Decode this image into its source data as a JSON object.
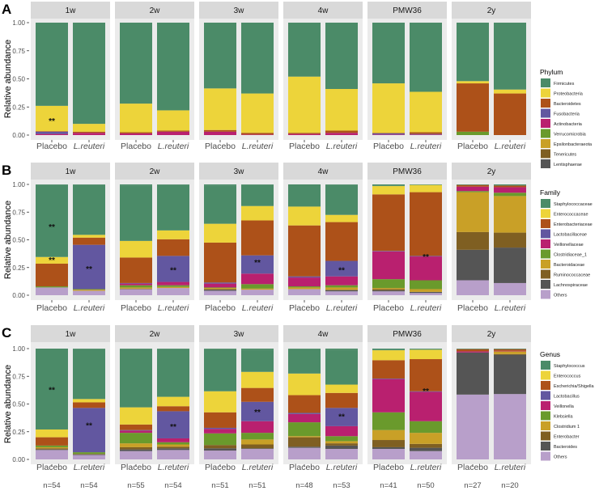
{
  "chart_data": [
    {
      "type": "bar",
      "stacked": true,
      "panel_label": "A",
      "ylabel": "Relative abundance",
      "ylim": [
        0,
        1
      ],
      "yticks": [
        "0.00",
        "0.25",
        "0.50",
        "0.75",
        "1.00"
      ],
      "facets": [
        "1w",
        "2w",
        "3w",
        "4w",
        "PMW36",
        "2y"
      ],
      "groups": [
        "Placebo",
        "L.reuteri"
      ],
      "legend_title": "Phylum",
      "legend_position": "right",
      "taxa": [
        "Firmicutes",
        "Proteobacteria",
        "Bacteroidetes",
        "Fusobacteria",
        "Actinobacteria",
        "Verrucomicrobia",
        "Epsilonbacteraeota",
        "Tenericutes",
        "Lentisphaerae"
      ],
      "colors": [
        "#4b8b68",
        "#edd43a",
        "#ad5119",
        "#6257a0",
        "#b9206f",
        "#6a9a2c",
        "#c9a027",
        "#7f5f22",
        "#555555"
      ],
      "values": [
        [
          [
            0.74,
            0.225,
            0.005,
            0.02,
            0.01,
            0,
            0,
            0,
            0
          ],
          [
            0.9,
            0.07,
            0.01,
            0,
            0.02,
            0,
            0,
            0,
            0
          ]
        ],
        [
          [
            0.72,
            0.255,
            0.01,
            0,
            0.015,
            0,
            0,
            0,
            0
          ],
          [
            0.78,
            0.18,
            0.01,
            0,
            0.03,
            0,
            0,
            0,
            0
          ]
        ],
        [
          [
            0.585,
            0.37,
            0.015,
            0,
            0.03,
            0,
            0,
            0,
            0
          ],
          [
            0.63,
            0.35,
            0.015,
            0,
            0.005,
            0,
            0,
            0,
            0
          ]
        ],
        [
          [
            0.48,
            0.5,
            0.01,
            0,
            0.01,
            0,
            0,
            0,
            0
          ],
          [
            0.59,
            0.37,
            0.02,
            0,
            0.02,
            0,
            0,
            0,
            0
          ]
        ],
        [
          [
            0.54,
            0.44,
            0.005,
            0.01,
            0.005,
            0,
            0,
            0,
            0
          ],
          [
            0.615,
            0.36,
            0.015,
            0.005,
            0.005,
            0,
            0,
            0,
            0
          ]
        ],
        [
          [
            0.52,
            0.02,
            0.43,
            0,
            0,
            0.03,
            0,
            0,
            0
          ],
          [
            0.595,
            0.035,
            0.37,
            0,
            0,
            0,
            0,
            0,
            0
          ]
        ]
      ],
      "annotations": [
        {
          "facet": 0,
          "group": 0,
          "y": 0.13,
          "text": "**"
        }
      ]
    },
    {
      "type": "bar",
      "stacked": true,
      "panel_label": "B",
      "ylabel": "Relative abundance",
      "ylim": [
        0,
        1
      ],
      "yticks": [
        "0.00",
        "0.25",
        "0.50",
        "0.75",
        "1.00"
      ],
      "facets": [
        "1w",
        "2w",
        "3w",
        "4w",
        "PMW36",
        "2y"
      ],
      "groups": [
        "Placebo",
        "L.reuteri"
      ],
      "legend_title": "Family",
      "legend_position": "right",
      "taxa": [
        "Staphylococcaceae",
        "Enterococcaceae",
        "Enterobacteriaceae",
        "Lactobacillaceae",
        "Veillonellaceae",
        "Clostridiaceae_1",
        "Bacteroidaceae",
        "Ruminococcaceae",
        "Lachnospiraceae",
        "Others"
      ],
      "colors": [
        "#4b8b68",
        "#edd43a",
        "#ad5119",
        "#6257a0",
        "#b9206f",
        "#6a9a2c",
        "#c9a027",
        "#7f5f22",
        "#555555",
        "#b89fca"
      ],
      "values": [
        [
          [
            0.65,
            0.06,
            0.205,
            0,
            0,
            0.01,
            0,
            0,
            0,
            0.07
          ],
          [
            0.45,
            0.025,
            0.065,
            0.4,
            0,
            0.005,
            0.01,
            0,
            0,
            0.04
          ]
        ],
        [
          [
            0.5,
            0.15,
            0.23,
            0.005,
            0.015,
            0.02,
            0.01,
            0.005,
            0,
            0.055
          ],
          [
            0.41,
            0.08,
            0.15,
            0.235,
            0.03,
            0.015,
            0.01,
            0,
            0,
            0.065
          ]
        ],
        [
          [
            0.345,
            0.17,
            0.36,
            0.01,
            0.035,
            0.005,
            0.01,
            0.005,
            0.01,
            0.04
          ],
          [
            0.19,
            0.13,
            0.315,
            0.165,
            0.095,
            0.04,
            0.01,
            0,
            0,
            0.05
          ]
        ],
        [
          [
            0.2,
            0.17,
            0.46,
            0.01,
            0.08,
            0.01,
            0.015,
            0,
            0,
            0.055
          ],
          [
            0.27,
            0.065,
            0.35,
            0.14,
            0.08,
            0.02,
            0.02,
            0.005,
            0.01,
            0.035
          ]
        ],
        [
          [
            0.005,
            0.075,
            0.51,
            0.005,
            0.25,
            0.08,
            0.01,
            0.01,
            0.01,
            0.035
          ],
          [
            0.005,
            0.065,
            0.575,
            0.005,
            0.215,
            0.08,
            0.025,
            0,
            0.01,
            0.02
          ]
        ],
        [
          [
            0,
            0,
            0.015,
            0,
            0.04,
            0.01,
            0.36,
            0.16,
            0.275,
            0.135
          ],
          [
            0,
            0,
            0.015,
            0,
            0.05,
            0.03,
            0.33,
            0.135,
            0.32,
            0.11
          ]
        ]
      ],
      "annotations": [
        {
          "facet": 0,
          "group": 0,
          "y": 0.62,
          "text": "**"
        },
        {
          "facet": 0,
          "group": 0,
          "y": 0.32,
          "text": "**"
        },
        {
          "facet": 0,
          "group": 1,
          "y": 0.24,
          "text": "**"
        },
        {
          "facet": 1,
          "group": 1,
          "y": 0.23,
          "text": "**"
        },
        {
          "facet": 2,
          "group": 1,
          "y": 0.3,
          "text": "**"
        },
        {
          "facet": 3,
          "group": 1,
          "y": 0.23,
          "text": "**"
        },
        {
          "facet": 4,
          "group": 1,
          "y": 0.35,
          "text": "**"
        }
      ]
    },
    {
      "type": "bar",
      "stacked": true,
      "panel_label": "C",
      "ylabel": "Relative abundance",
      "ylim": [
        0,
        1
      ],
      "yticks": [
        "0.00",
        "0.25",
        "0.50",
        "0.75",
        "1.00"
      ],
      "facets": [
        "1w",
        "2w",
        "3w",
        "4w",
        "PMW36",
        "2y"
      ],
      "groups": [
        "Placebo",
        "L.reuteri"
      ],
      "sample_sizes": [
        [
          "n=54",
          "n=54"
        ],
        [
          "n=55",
          "n=54"
        ],
        [
          "n=51",
          "n=51"
        ],
        [
          "n=48",
          "n=53"
        ],
        [
          "n=41",
          "n=50"
        ],
        [
          "n=27",
          "n=20"
        ]
      ],
      "legend_title": "Genus",
      "legend_position": "right",
      "taxa": [
        "Staphylococcus",
        "Enterococcus",
        "Escherichia/Shigella",
        "Lactobacillus",
        "Veillonella",
        "Klebsiella",
        "Clostridium 1",
        "Enterobacter",
        "Bacteroides",
        "Others"
      ],
      "colors": [
        "#4b8b68",
        "#edd43a",
        "#ad5119",
        "#6257a0",
        "#b9206f",
        "#6a9a2c",
        "#c9a027",
        "#7f5f22",
        "#555555",
        "#b89fca"
      ],
      "values": [
        [
          [
            0.73,
            0.07,
            0.075,
            0,
            0,
            0.015,
            0.01,
            0.01,
            0.005,
            0.085
          ],
          [
            0.45,
            0.03,
            0.05,
            0.4,
            0,
            0.015,
            0,
            0.005,
            0.005,
            0.04
          ]
        ],
        [
          [
            0.525,
            0.155,
            0.05,
            0.005,
            0.02,
            0.095,
            0.035,
            0.02,
            0.015,
            0.075
          ],
          [
            0.43,
            0.085,
            0.045,
            0.245,
            0.035,
            0.02,
            0.02,
            0.015,
            0.015,
            0.085
          ]
        ],
        [
          [
            0.38,
            0.19,
            0.14,
            0.01,
            0.04,
            0.105,
            0,
            0.03,
            0.02,
            0.08
          ],
          [
            0.2,
            0.145,
            0.125,
            0.175,
            0.105,
            0.06,
            0.045,
            0.035,
            0.005,
            0.095
          ]
        ],
        [
          [
            0.22,
            0.195,
            0.16,
            0.01,
            0.075,
            0.125,
            0.01,
            0.085,
            0.01,
            0.105
          ],
          [
            0.315,
            0.075,
            0.135,
            0.165,
            0.09,
            0.045,
            0.02,
            0.02,
            0.03,
            0.095
          ]
        ],
        [
          [
            0.005,
            0.09,
            0.165,
            0.005,
            0.3,
            0.16,
            0.09,
            0.065,
            0.015,
            0.095
          ],
          [
            0.005,
            0.085,
            0.29,
            0.005,
            0.265,
            0.105,
            0.1,
            0.035,
            0.03,
            0.075
          ]
        ],
        [
          [
            0.005,
            0,
            0.02,
            0,
            0.01,
            0,
            0,
            0,
            0.38,
            0.585
          ],
          [
            0.005,
            0,
            0.015,
            0,
            0.005,
            0,
            0.025,
            0.005,
            0.355,
            0.59
          ]
        ]
      ],
      "annotations": [
        {
          "facet": 0,
          "group": 0,
          "y": 0.63,
          "text": "**"
        },
        {
          "facet": 0,
          "group": 1,
          "y": 0.31,
          "text": "**"
        },
        {
          "facet": 1,
          "group": 1,
          "y": 0.3,
          "text": "**"
        },
        {
          "facet": 2,
          "group": 1,
          "y": 0.43,
          "text": "**"
        },
        {
          "facet": 3,
          "group": 1,
          "y": 0.39,
          "text": "**"
        },
        {
          "facet": 4,
          "group": 1,
          "y": 0.62,
          "text": "**"
        }
      ]
    }
  ]
}
